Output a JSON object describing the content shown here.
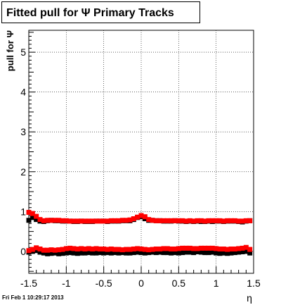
{
  "title": "Fitted pull for  Ψ   Primary Tracks",
  "timestamp": "Fri Feb  1 10:29:17 2013",
  "chart_data": {
    "type": "scatter",
    "xlabel": "η",
    "ylabel": "pull for Ψ",
    "xlim": [
      -1.5,
      1.5
    ],
    "ylim": [
      -0.55,
      5.55
    ],
    "x_ticks": [
      "-1.5",
      "-1",
      "-0.5",
      "0",
      "0.5",
      "1",
      "1.5"
    ],
    "y_ticks": [
      "0",
      "1",
      "2",
      "3",
      "4",
      "5"
    ],
    "grid": true,
    "x": [
      -1.5,
      -1.45,
      -1.4,
      -1.35,
      -1.3,
      -1.25,
      -1.2,
      -1.15,
      -1.1,
      -1.05,
      -1.0,
      -0.95,
      -0.9,
      -0.85,
      -0.8,
      -0.75,
      -0.7,
      -0.65,
      -0.6,
      -0.55,
      -0.5,
      -0.45,
      -0.4,
      -0.35,
      -0.3,
      -0.25,
      -0.2,
      -0.15,
      -0.1,
      -0.05,
      0.0,
      0.05,
      0.1,
      0.15,
      0.2,
      0.25,
      0.3,
      0.35,
      0.4,
      0.45,
      0.5,
      0.55,
      0.6,
      0.65,
      0.7,
      0.75,
      0.8,
      0.85,
      0.9,
      0.95,
      1.0,
      1.05,
      1.1,
      1.15,
      1.2,
      1.25,
      1.3,
      1.35,
      1.4,
      1.45
    ],
    "series": [
      {
        "color": "#000000",
        "role": "sigma",
        "values": [
          0.78,
          0.85,
          0.8,
          0.76,
          0.75,
          0.77,
          0.78,
          0.77,
          0.77,
          0.76,
          0.76,
          0.76,
          0.75,
          0.75,
          0.76,
          0.75,
          0.75,
          0.75,
          0.76,
          0.76,
          0.76,
          0.75,
          0.76,
          0.76,
          0.76,
          0.77,
          0.77,
          0.77,
          0.8,
          0.85,
          0.87,
          0.82,
          0.78,
          0.78,
          0.77,
          0.77,
          0.76,
          0.76,
          0.76,
          0.77,
          0.76,
          0.76,
          0.75,
          0.76,
          0.75,
          0.76,
          0.75,
          0.75,
          0.76,
          0.75,
          0.76,
          0.76,
          0.75,
          0.76,
          0.76,
          0.76,
          0.75,
          0.74,
          0.76,
          0.77
        ]
      },
      {
        "color": "#ff0000",
        "role": "sigma",
        "values": [
          0.98,
          0.95,
          0.88,
          0.8,
          0.77,
          0.78,
          0.78,
          0.78,
          0.78,
          0.77,
          0.77,
          0.76,
          0.76,
          0.76,
          0.76,
          0.76,
          0.76,
          0.76,
          0.76,
          0.76,
          0.76,
          0.76,
          0.77,
          0.77,
          0.77,
          0.78,
          0.78,
          0.79,
          0.82,
          0.86,
          0.9,
          0.87,
          0.8,
          0.78,
          0.77,
          0.77,
          0.77,
          0.77,
          0.77,
          0.77,
          0.77,
          0.77,
          0.76,
          0.77,
          0.76,
          0.77,
          0.77,
          0.76,
          0.77,
          0.77,
          0.77,
          0.77,
          0.76,
          0.77,
          0.77,
          0.77,
          0.76,
          0.76,
          0.77,
          0.77
        ]
      },
      {
        "color": "#000000",
        "role": "mean",
        "values": [
          -0.02,
          0.0,
          0.02,
          -0.02,
          -0.04,
          -0.06,
          -0.05,
          -0.04,
          -0.06,
          -0.05,
          -0.04,
          -0.03,
          -0.04,
          -0.05,
          -0.04,
          -0.04,
          -0.03,
          -0.04,
          -0.04,
          -0.03,
          -0.04,
          -0.03,
          -0.04,
          -0.03,
          -0.04,
          -0.03,
          -0.04,
          -0.04,
          -0.03,
          -0.02,
          -0.03,
          -0.04,
          -0.03,
          -0.02,
          -0.03,
          -0.02,
          -0.03,
          -0.03,
          -0.04,
          -0.03,
          -0.04,
          -0.03,
          -0.02,
          -0.02,
          -0.03,
          -0.01,
          -0.02,
          -0.03,
          -0.03,
          -0.02,
          -0.04,
          -0.05,
          -0.04,
          -0.05,
          -0.04,
          -0.03,
          -0.02,
          -0.01,
          0.0,
          -0.04
        ]
      },
      {
        "color": "#ff0000",
        "role": "mean",
        "values": [
          0.02,
          0.05,
          0.09,
          0.06,
          0.03,
          0.03,
          0.04,
          0.03,
          0.04,
          0.05,
          0.07,
          0.08,
          0.07,
          0.06,
          0.07,
          0.06,
          0.07,
          0.06,
          0.07,
          0.06,
          0.06,
          0.05,
          0.06,
          0.05,
          0.05,
          0.04,
          0.05,
          0.05,
          0.06,
          0.07,
          0.06,
          0.05,
          0.04,
          0.05,
          0.06,
          0.06,
          0.07,
          0.07,
          0.06,
          0.06,
          0.07,
          0.08,
          0.08,
          0.08,
          0.07,
          0.07,
          0.08,
          0.08,
          0.08,
          0.08,
          0.07,
          0.06,
          0.06,
          0.05,
          0.06,
          0.06,
          0.07,
          0.08,
          0.1,
          0.05
        ]
      }
    ]
  }
}
